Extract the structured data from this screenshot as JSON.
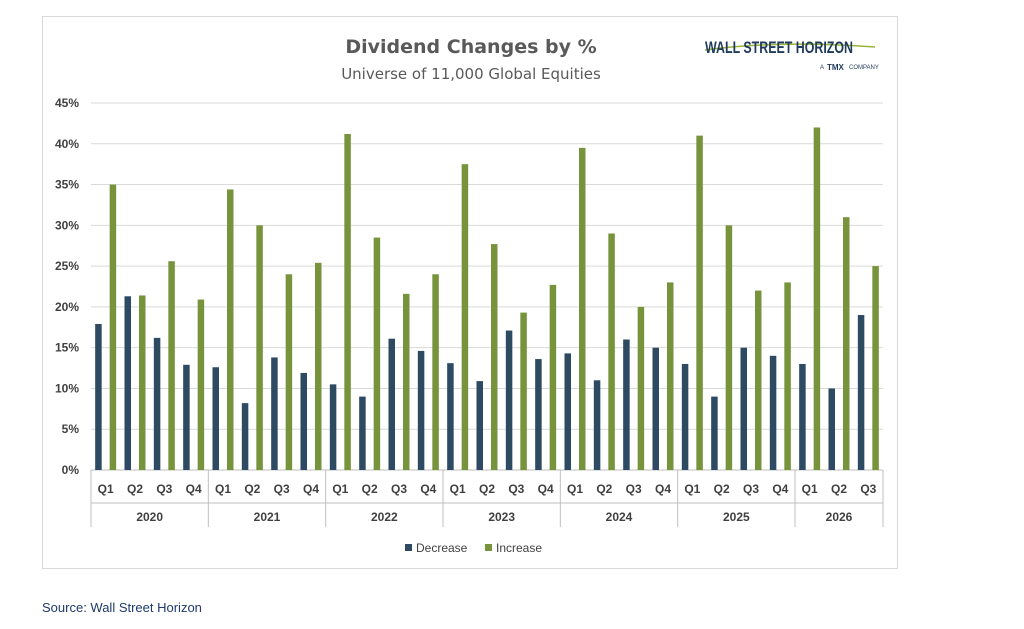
{
  "chart_data": {
    "type": "bar",
    "title": "Dividend Changes by %",
    "subtitle": "Universe of 11,000 Global Equities",
    "ylim": [
      0,
      45
    ],
    "y_ticks": [
      "0%",
      "5%",
      "10%",
      "15%",
      "20%",
      "25%",
      "30%",
      "35%",
      "40%",
      "45%"
    ],
    "y_tick_values": [
      0,
      5,
      10,
      15,
      20,
      25,
      30,
      35,
      40,
      45
    ],
    "grid": true,
    "legend_position": "bottom",
    "groups": [
      {
        "year": "2020",
        "quarters": [
          "Q1",
          "Q2",
          "Q3",
          "Q4"
        ]
      },
      {
        "year": "2021",
        "quarters": [
          "Q1",
          "Q2",
          "Q3",
          "Q4"
        ]
      },
      {
        "year": "2022",
        "quarters": [
          "Q1",
          "Q2",
          "Q3",
          "Q4"
        ]
      },
      {
        "year": "2023",
        "quarters": [
          "Q1",
          "Q2",
          "Q3",
          "Q4"
        ]
      },
      {
        "year": "2024",
        "quarters": [
          "Q1",
          "Q2",
          "Q3",
          "Q4"
        ]
      },
      {
        "year": "2025",
        "quarters": [
          "Q1",
          "Q2",
          "Q3",
          "Q4"
        ]
      },
      {
        "year": "2026",
        "quarters": [
          "Q1",
          "Q2",
          "Q3"
        ]
      }
    ],
    "series": [
      {
        "name": "Decrease",
        "color": "#2e4a62",
        "values": [
          17.9,
          21.3,
          16.2,
          12.9,
          12.6,
          8.2,
          13.8,
          11.9,
          10.5,
          9.0,
          16.1,
          14.6,
          13.1,
          10.9,
          17.1,
          13.6,
          14.3,
          11.0,
          16.0,
          15.0,
          13.0,
          9.0,
          15.0,
          14.0,
          13.0,
          10.0,
          19.0
        ]
      },
      {
        "name": "Increase",
        "color": "#77933c",
        "values": [
          35.0,
          21.4,
          25.6,
          20.9,
          34.4,
          30.0,
          24.0,
          25.4,
          41.2,
          28.5,
          21.6,
          24.0,
          37.5,
          27.7,
          19.3,
          22.7,
          39.5,
          29.0,
          20.0,
          23.0,
          41.0,
          30.0,
          22.0,
          23.0,
          42.0,
          31.0,
          25.0
        ]
      }
    ]
  },
  "logo": {
    "name": "WALL STREET HORIZON",
    "tagline_prefix": "A",
    "tagline_brand": "TMX",
    "tagline_suffix": "COMPANY"
  },
  "source": "Source: Wall Street Horizon"
}
